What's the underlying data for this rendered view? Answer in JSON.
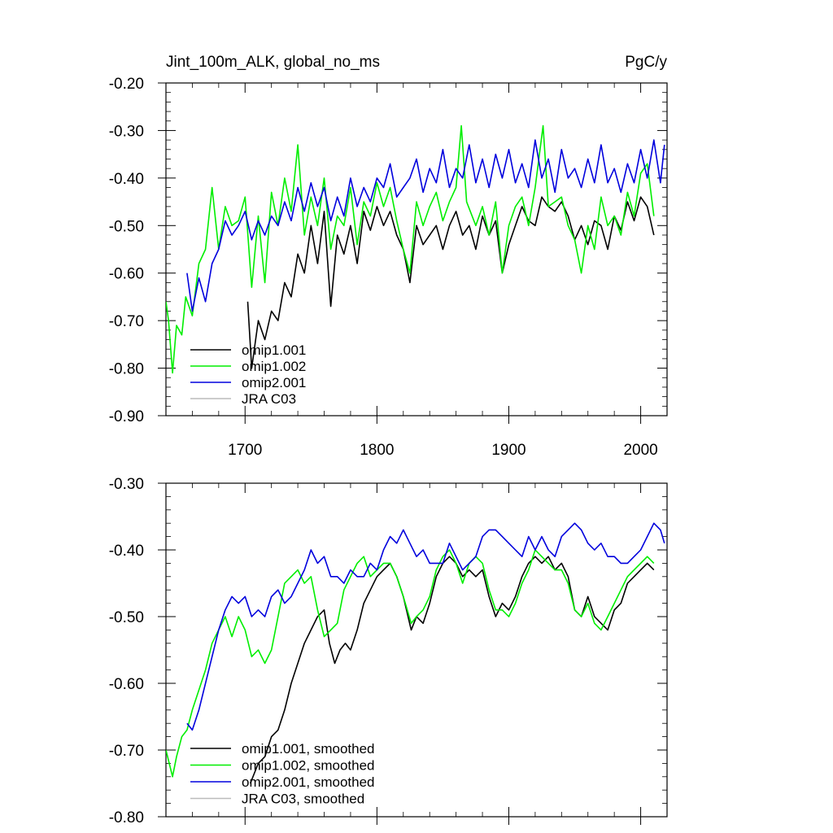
{
  "figure": {
    "title_left": "Jint_100m_ALK, global_no_ms",
    "title_right": "PgC/y"
  },
  "chart_data": [
    {
      "type": "line",
      "id": "annual",
      "title": "Jint_100m_ALK, global_no_ms",
      "units": "PgC/y",
      "xlim": [
        1640,
        2020
      ],
      "ylim": [
        -0.9,
        -0.2
      ],
      "xticks": [
        1700,
        1800,
        1900,
        2000
      ],
      "xtick_labels": [
        "1700",
        "1800",
        "1900",
        "2000"
      ],
      "yticks": [
        -0.9,
        -0.8,
        -0.7,
        -0.6,
        -0.5,
        -0.4,
        -0.3,
        -0.2
      ],
      "ytick_labels": [
        "-0.90",
        "-0.80",
        "-0.70",
        "-0.60",
        "-0.50",
        "-0.40",
        "-0.30",
        "-0.20"
      ],
      "grid": false,
      "legend_position": "bottom-left",
      "series": [
        {
          "name": "omip1.001",
          "color": "#000000",
          "x": [
            1702,
            1705,
            1710,
            1715,
            1720,
            1725,
            1730,
            1735,
            1740,
            1745,
            1750,
            1755,
            1760,
            1765,
            1770,
            1775,
            1780,
            1785,
            1790,
            1795,
            1800,
            1805,
            1810,
            1815,
            1820,
            1825,
            1830,
            1835,
            1840,
            1845,
            1850,
            1855,
            1860,
            1865,
            1870,
            1875,
            1880,
            1885,
            1890,
            1895,
            1900,
            1905,
            1910,
            1915,
            1920,
            1925,
            1930,
            1935,
            1940,
            1945,
            1950,
            1955,
            1960,
            1965,
            1970,
            1975,
            1980,
            1985,
            1990,
            1995,
            2000,
            2005,
            2010
          ],
          "y": [
            -0.66,
            -0.8,
            -0.7,
            -0.74,
            -0.68,
            -0.7,
            -0.62,
            -0.65,
            -0.56,
            -0.6,
            -0.5,
            -0.58,
            -0.47,
            -0.67,
            -0.52,
            -0.56,
            -0.5,
            -0.58,
            -0.47,
            -0.51,
            -0.46,
            -0.5,
            -0.47,
            -0.52,
            -0.55,
            -0.62,
            -0.5,
            -0.54,
            -0.52,
            -0.5,
            -0.55,
            -0.5,
            -0.47,
            -0.52,
            -0.5,
            -0.55,
            -0.48,
            -0.52,
            -0.49,
            -0.6,
            -0.54,
            -0.5,
            -0.46,
            -0.49,
            -0.5,
            -0.44,
            -0.46,
            -0.47,
            -0.45,
            -0.48,
            -0.53,
            -0.5,
            -0.54,
            -0.49,
            -0.5,
            -0.55,
            -0.48,
            -0.51,
            -0.45,
            -0.49,
            -0.44,
            -0.46,
            -0.52
          ]
        },
        {
          "name": "omip1.002",
          "color": "#00ee00",
          "x": [
            1640,
            1642,
            1645,
            1648,
            1652,
            1655,
            1660,
            1665,
            1670,
            1675,
            1680,
            1685,
            1690,
            1695,
            1700,
            1705,
            1710,
            1715,
            1720,
            1725,
            1730,
            1735,
            1740,
            1745,
            1750,
            1755,
            1760,
            1765,
            1770,
            1775,
            1780,
            1785,
            1790,
            1795,
            1800,
            1805,
            1810,
            1815,
            1820,
            1825,
            1830,
            1835,
            1840,
            1845,
            1850,
            1855,
            1860,
            1864,
            1868,
            1875,
            1880,
            1885,
            1890,
            1895,
            1900,
            1905,
            1910,
            1915,
            1920,
            1926,
            1930,
            1935,
            1940,
            1945,
            1950,
            1955,
            1960,
            1965,
            1970,
            1975,
            1980,
            1985,
            1990,
            1995,
            2000,
            2005,
            2010
          ],
          "y": [
            -0.66,
            -0.7,
            -0.81,
            -0.71,
            -0.73,
            -0.65,
            -0.69,
            -0.58,
            -0.55,
            -0.42,
            -0.55,
            -0.46,
            -0.5,
            -0.49,
            -0.44,
            -0.63,
            -0.48,
            -0.62,
            -0.43,
            -0.5,
            -0.4,
            -0.47,
            -0.33,
            -0.52,
            -0.44,
            -0.5,
            -0.4,
            -0.55,
            -0.48,
            -0.5,
            -0.42,
            -0.54,
            -0.45,
            -0.48,
            -0.41,
            -0.46,
            -0.42,
            -0.49,
            -0.55,
            -0.6,
            -0.45,
            -0.5,
            -0.46,
            -0.43,
            -0.49,
            -0.45,
            -0.42,
            -0.29,
            -0.45,
            -0.5,
            -0.46,
            -0.52,
            -0.45,
            -0.6,
            -0.5,
            -0.46,
            -0.44,
            -0.5,
            -0.42,
            -0.29,
            -0.46,
            -0.45,
            -0.44,
            -0.5,
            -0.53,
            -0.6,
            -0.5,
            -0.55,
            -0.44,
            -0.5,
            -0.48,
            -0.52,
            -0.43,
            -0.48,
            -0.39,
            -0.37,
            -0.48
          ]
        },
        {
          "name": "omip2.001",
          "color": "#0000dd",
          "x": [
            1656,
            1660,
            1665,
            1670,
            1675,
            1680,
            1685,
            1690,
            1695,
            1700,
            1705,
            1710,
            1715,
            1720,
            1725,
            1730,
            1735,
            1740,
            1745,
            1750,
            1755,
            1760,
            1765,
            1770,
            1775,
            1780,
            1785,
            1790,
            1795,
            1800,
            1805,
            1810,
            1815,
            1820,
            1825,
            1830,
            1835,
            1840,
            1845,
            1850,
            1855,
            1860,
            1865,
            1870,
            1875,
            1880,
            1885,
            1890,
            1895,
            1900,
            1905,
            1910,
            1915,
            1920,
            1925,
            1930,
            1935,
            1940,
            1945,
            1950,
            1955,
            1960,
            1965,
            1970,
            1975,
            1980,
            1985,
            1990,
            1995,
            2000,
            2005,
            2010,
            2015,
            2018
          ],
          "y": [
            -0.6,
            -0.68,
            -0.61,
            -0.66,
            -0.58,
            -0.55,
            -0.49,
            -0.52,
            -0.5,
            -0.47,
            -0.53,
            -0.49,
            -0.52,
            -0.48,
            -0.5,
            -0.45,
            -0.49,
            -0.42,
            -0.47,
            -0.41,
            -0.46,
            -0.42,
            -0.49,
            -0.44,
            -0.48,
            -0.4,
            -0.46,
            -0.42,
            -0.45,
            -0.4,
            -0.42,
            -0.37,
            -0.44,
            -0.42,
            -0.4,
            -0.36,
            -0.43,
            -0.38,
            -0.41,
            -0.34,
            -0.42,
            -0.38,
            -0.4,
            -0.33,
            -0.41,
            -0.36,
            -0.42,
            -0.35,
            -0.4,
            -0.34,
            -0.41,
            -0.37,
            -0.42,
            -0.32,
            -0.4,
            -0.36,
            -0.43,
            -0.34,
            -0.4,
            -0.38,
            -0.42,
            -0.36,
            -0.41,
            -0.33,
            -0.41,
            -0.38,
            -0.43,
            -0.37,
            -0.41,
            -0.34,
            -0.4,
            -0.32,
            -0.41,
            -0.33
          ]
        },
        {
          "name": "JRA C03",
          "color": "#bbbbbb",
          "x": [],
          "y": []
        }
      ]
    },
    {
      "type": "line",
      "id": "smoothed",
      "title": "",
      "xlim": [
        1640,
        2020
      ],
      "ylim": [
        -0.8,
        -0.3
      ],
      "xticks": [
        1700,
        1800,
        1900,
        2000
      ],
      "xtick_labels": [],
      "yticks": [
        -0.8,
        -0.7,
        -0.6,
        -0.5,
        -0.4,
        -0.3
      ],
      "ytick_labels": [
        "-0.80",
        "-0.70",
        "-0.60",
        "-0.50",
        "-0.40",
        "-0.30"
      ],
      "grid": false,
      "legend_position": "bottom-left",
      "series": [
        {
          "name": "omip1.001, smoothed",
          "color": "#000000",
          "x": [
            1704,
            1710,
            1715,
            1720,
            1725,
            1730,
            1735,
            1740,
            1745,
            1750,
            1755,
            1760,
            1764,
            1768,
            1772,
            1776,
            1780,
            1785,
            1790,
            1795,
            1800,
            1805,
            1810,
            1815,
            1820,
            1826,
            1830,
            1835,
            1840,
            1845,
            1850,
            1855,
            1860,
            1865,
            1870,
            1875,
            1880,
            1885,
            1890,
            1895,
            1900,
            1905,
            1910,
            1915,
            1920,
            1925,
            1930,
            1935,
            1940,
            1945,
            1950,
            1955,
            1960,
            1965,
            1970,
            1975,
            1980,
            1985,
            1990,
            1995,
            2000,
            2005,
            2010
          ],
          "y": [
            -0.75,
            -0.72,
            -0.71,
            -0.68,
            -0.67,
            -0.64,
            -0.6,
            -0.57,
            -0.54,
            -0.52,
            -0.5,
            -0.49,
            -0.54,
            -0.57,
            -0.55,
            -0.54,
            -0.55,
            -0.52,
            -0.48,
            -0.46,
            -0.44,
            -0.43,
            -0.42,
            -0.44,
            -0.47,
            -0.52,
            -0.5,
            -0.51,
            -0.48,
            -0.44,
            -0.42,
            -0.41,
            -0.42,
            -0.44,
            -0.43,
            -0.44,
            -0.43,
            -0.47,
            -0.5,
            -0.48,
            -0.49,
            -0.47,
            -0.44,
            -0.42,
            -0.41,
            -0.42,
            -0.41,
            -0.43,
            -0.42,
            -0.44,
            -0.49,
            -0.5,
            -0.47,
            -0.5,
            -0.51,
            -0.52,
            -0.49,
            -0.48,
            -0.45,
            -0.44,
            -0.43,
            -0.42,
            -0.43
          ]
        },
        {
          "name": "omip1.002, smoothed",
          "color": "#00ee00",
          "x": [
            1640,
            1645,
            1648,
            1652,
            1656,
            1660,
            1665,
            1670,
            1675,
            1680,
            1685,
            1690,
            1695,
            1700,
            1705,
            1710,
            1715,
            1720,
            1725,
            1730,
            1735,
            1740,
            1745,
            1750,
            1755,
            1760,
            1765,
            1770,
            1775,
            1780,
            1785,
            1790,
            1795,
            1800,
            1805,
            1810,
            1815,
            1820,
            1826,
            1830,
            1835,
            1840,
            1845,
            1850,
            1855,
            1860,
            1865,
            1870,
            1875,
            1880,
            1885,
            1890,
            1895,
            1900,
            1905,
            1910,
            1915,
            1920,
            1925,
            1930,
            1935,
            1940,
            1945,
            1950,
            1955,
            1960,
            1965,
            1970,
            1975,
            1980,
            1985,
            1990,
            1995,
            2000,
            2005,
            2010
          ],
          "y": [
            -0.7,
            -0.74,
            -0.71,
            -0.68,
            -0.67,
            -0.64,
            -0.61,
            -0.58,
            -0.54,
            -0.52,
            -0.5,
            -0.53,
            -0.5,
            -0.52,
            -0.56,
            -0.55,
            -0.57,
            -0.55,
            -0.5,
            -0.45,
            -0.44,
            -0.43,
            -0.45,
            -0.44,
            -0.49,
            -0.53,
            -0.52,
            -0.51,
            -0.46,
            -0.44,
            -0.42,
            -0.41,
            -0.44,
            -0.43,
            -0.42,
            -0.42,
            -0.44,
            -0.47,
            -0.51,
            -0.5,
            -0.49,
            -0.47,
            -0.43,
            -0.41,
            -0.4,
            -0.42,
            -0.45,
            -0.42,
            -0.41,
            -0.42,
            -0.46,
            -0.49,
            -0.49,
            -0.5,
            -0.48,
            -0.45,
            -0.43,
            -0.4,
            -0.41,
            -0.42,
            -0.43,
            -0.43,
            -0.45,
            -0.49,
            -0.5,
            -0.48,
            -0.51,
            -0.52,
            -0.5,
            -0.48,
            -0.46,
            -0.44,
            -0.43,
            -0.42,
            -0.41,
            -0.42
          ]
        },
        {
          "name": "omip2.001, smoothed",
          "color": "#0000dd",
          "x": [
            1656,
            1660,
            1665,
            1670,
            1675,
            1680,
            1685,
            1690,
            1695,
            1700,
            1705,
            1710,
            1715,
            1720,
            1725,
            1730,
            1735,
            1740,
            1745,
            1750,
            1755,
            1760,
            1765,
            1770,
            1775,
            1780,
            1785,
            1790,
            1795,
            1800,
            1805,
            1810,
            1815,
            1820,
            1825,
            1830,
            1835,
            1840,
            1845,
            1850,
            1855,
            1860,
            1865,
            1870,
            1875,
            1880,
            1885,
            1890,
            1895,
            1900,
            1905,
            1910,
            1915,
            1920,
            1925,
            1930,
            1935,
            1940,
            1945,
            1950,
            1955,
            1960,
            1965,
            1970,
            1975,
            1980,
            1985,
            1990,
            1995,
            2000,
            2005,
            2010,
            2015,
            2018
          ],
          "y": [
            -0.66,
            -0.67,
            -0.64,
            -0.6,
            -0.56,
            -0.52,
            -0.49,
            -0.47,
            -0.48,
            -0.47,
            -0.5,
            -0.49,
            -0.5,
            -0.47,
            -0.46,
            -0.48,
            -0.47,
            -0.45,
            -0.43,
            -0.4,
            -0.42,
            -0.41,
            -0.44,
            -0.44,
            -0.45,
            -0.43,
            -0.44,
            -0.44,
            -0.42,
            -0.43,
            -0.4,
            -0.38,
            -0.39,
            -0.37,
            -0.39,
            -0.41,
            -0.4,
            -0.42,
            -0.42,
            -0.42,
            -0.39,
            -0.41,
            -0.43,
            -0.42,
            -0.41,
            -0.38,
            -0.37,
            -0.37,
            -0.38,
            -0.39,
            -0.4,
            -0.41,
            -0.38,
            -0.4,
            -0.38,
            -0.4,
            -0.41,
            -0.38,
            -0.37,
            -0.36,
            -0.37,
            -0.39,
            -0.4,
            -0.39,
            -0.41,
            -0.41,
            -0.42,
            -0.42,
            -0.41,
            -0.4,
            -0.38,
            -0.36,
            -0.37,
            -0.39
          ]
        },
        {
          "name": "JRA C03, smoothed",
          "color": "#bbbbbb",
          "x": [],
          "y": []
        }
      ]
    }
  ]
}
